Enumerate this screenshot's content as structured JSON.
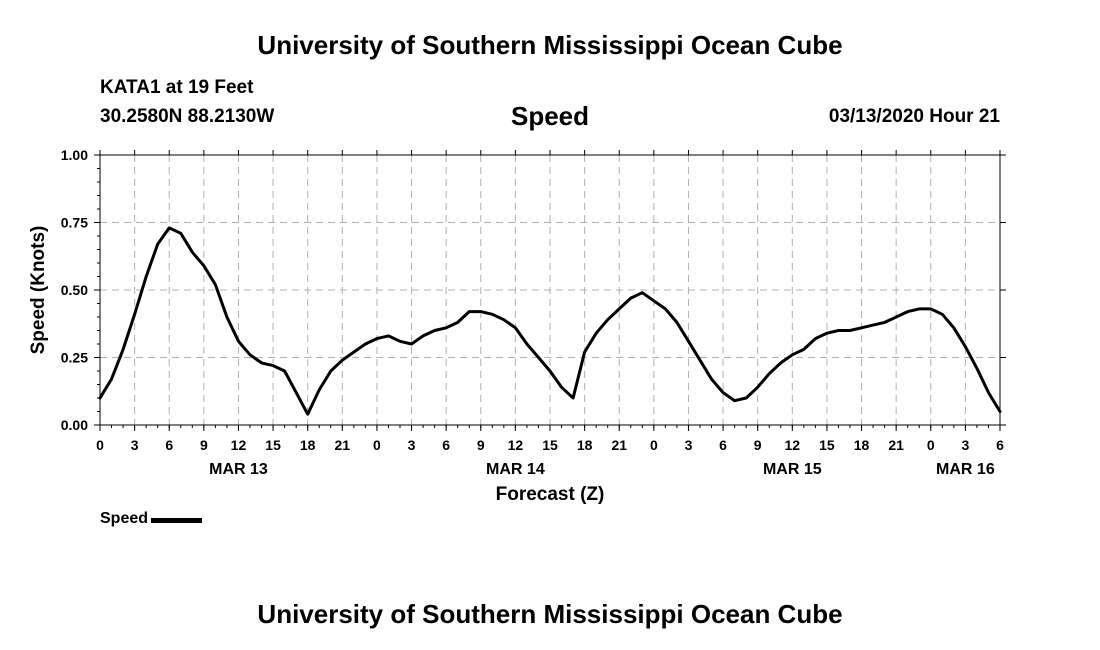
{
  "header": {
    "title": "University of Southern Mississippi Ocean Cube",
    "station": "KATA1 at 19 Feet",
    "coords": "30.2580N 88.2130W",
    "variable": "Speed",
    "timestamp": "03/13/2020 Hour 21"
  },
  "footer": {
    "title": "University of Southern Mississippi Ocean Cube"
  },
  "legend": {
    "label": "Speed"
  },
  "chart_data": {
    "type": "line",
    "title": "Speed",
    "xlabel": "Forecast (Z)",
    "ylabel": "Speed (Knots)",
    "ylim": [
      0,
      1
    ],
    "xlim": [
      0,
      78
    ],
    "x_unit": "hours since MAR 13 00Z",
    "grid": true,
    "yticks": [
      {
        "value": 0.0,
        "label": "0.00"
      },
      {
        "value": 0.25,
        "label": "0.25"
      },
      {
        "value": 0.5,
        "label": "0.50"
      },
      {
        "value": 0.75,
        "label": "0.75"
      },
      {
        "value": 1.0,
        "label": "1.00"
      }
    ],
    "xticks": [
      {
        "value": 0,
        "label": "0"
      },
      {
        "value": 3,
        "label": "3"
      },
      {
        "value": 6,
        "label": "6"
      },
      {
        "value": 9,
        "label": "9"
      },
      {
        "value": 12,
        "label": "12"
      },
      {
        "value": 15,
        "label": "15"
      },
      {
        "value": 18,
        "label": "18"
      },
      {
        "value": 21,
        "label": "21"
      },
      {
        "value": 24,
        "label": "0"
      },
      {
        "value": 27,
        "label": "3"
      },
      {
        "value": 30,
        "label": "6"
      },
      {
        "value": 33,
        "label": "9"
      },
      {
        "value": 36,
        "label": "12"
      },
      {
        "value": 39,
        "label": "15"
      },
      {
        "value": 42,
        "label": "18"
      },
      {
        "value": 45,
        "label": "21"
      },
      {
        "value": 48,
        "label": "0"
      },
      {
        "value": 51,
        "label": "3"
      },
      {
        "value": 54,
        "label": "6"
      },
      {
        "value": 57,
        "label": "9"
      },
      {
        "value": 60,
        "label": "12"
      },
      {
        "value": 63,
        "label": "15"
      },
      {
        "value": 66,
        "label": "18"
      },
      {
        "value": 69,
        "label": "21"
      },
      {
        "value": 72,
        "label": "0"
      },
      {
        "value": 75,
        "label": "3"
      },
      {
        "value": 78,
        "label": "6"
      }
    ],
    "day_labels": [
      {
        "value": 12,
        "label": "MAR 13"
      },
      {
        "value": 36,
        "label": "MAR 14"
      },
      {
        "value": 60,
        "label": "MAR 15"
      },
      {
        "value": 75,
        "label": "MAR 16"
      }
    ],
    "series": [
      {
        "name": "Speed",
        "x": [
          0,
          1,
          2,
          3,
          4,
          5,
          6,
          7,
          8,
          9,
          10,
          11,
          12,
          13,
          14,
          15,
          16,
          17,
          18,
          19,
          20,
          21,
          22,
          23,
          24,
          25,
          26,
          27,
          28,
          29,
          30,
          31,
          32,
          33,
          34,
          35,
          36,
          37,
          38,
          39,
          40,
          41,
          42,
          43,
          44,
          45,
          46,
          47,
          48,
          49,
          50,
          51,
          52,
          53,
          54,
          55,
          56,
          57,
          58,
          59,
          60,
          61,
          62,
          63,
          64,
          65,
          66,
          67,
          68,
          69,
          70,
          71,
          72,
          73,
          74,
          75,
          76,
          77,
          78
        ],
        "values": [
          0.1,
          0.17,
          0.28,
          0.41,
          0.55,
          0.67,
          0.73,
          0.71,
          0.64,
          0.59,
          0.52,
          0.4,
          0.31,
          0.26,
          0.23,
          0.22,
          0.2,
          0.12,
          0.04,
          0.13,
          0.2,
          0.24,
          0.27,
          0.3,
          0.32,
          0.33,
          0.31,
          0.3,
          0.33,
          0.35,
          0.36,
          0.38,
          0.42,
          0.42,
          0.41,
          0.39,
          0.36,
          0.3,
          0.25,
          0.2,
          0.14,
          0.1,
          0.27,
          0.34,
          0.39,
          0.43,
          0.47,
          0.49,
          0.46,
          0.43,
          0.38,
          0.31,
          0.24,
          0.17,
          0.12,
          0.09,
          0.1,
          0.14,
          0.19,
          0.23,
          0.26,
          0.28,
          0.32,
          0.34,
          0.35,
          0.35,
          0.36,
          0.37,
          0.38,
          0.4,
          0.42,
          0.43,
          0.43,
          0.41,
          0.36,
          0.29,
          0.21,
          0.12,
          0.05
        ]
      }
    ]
  }
}
